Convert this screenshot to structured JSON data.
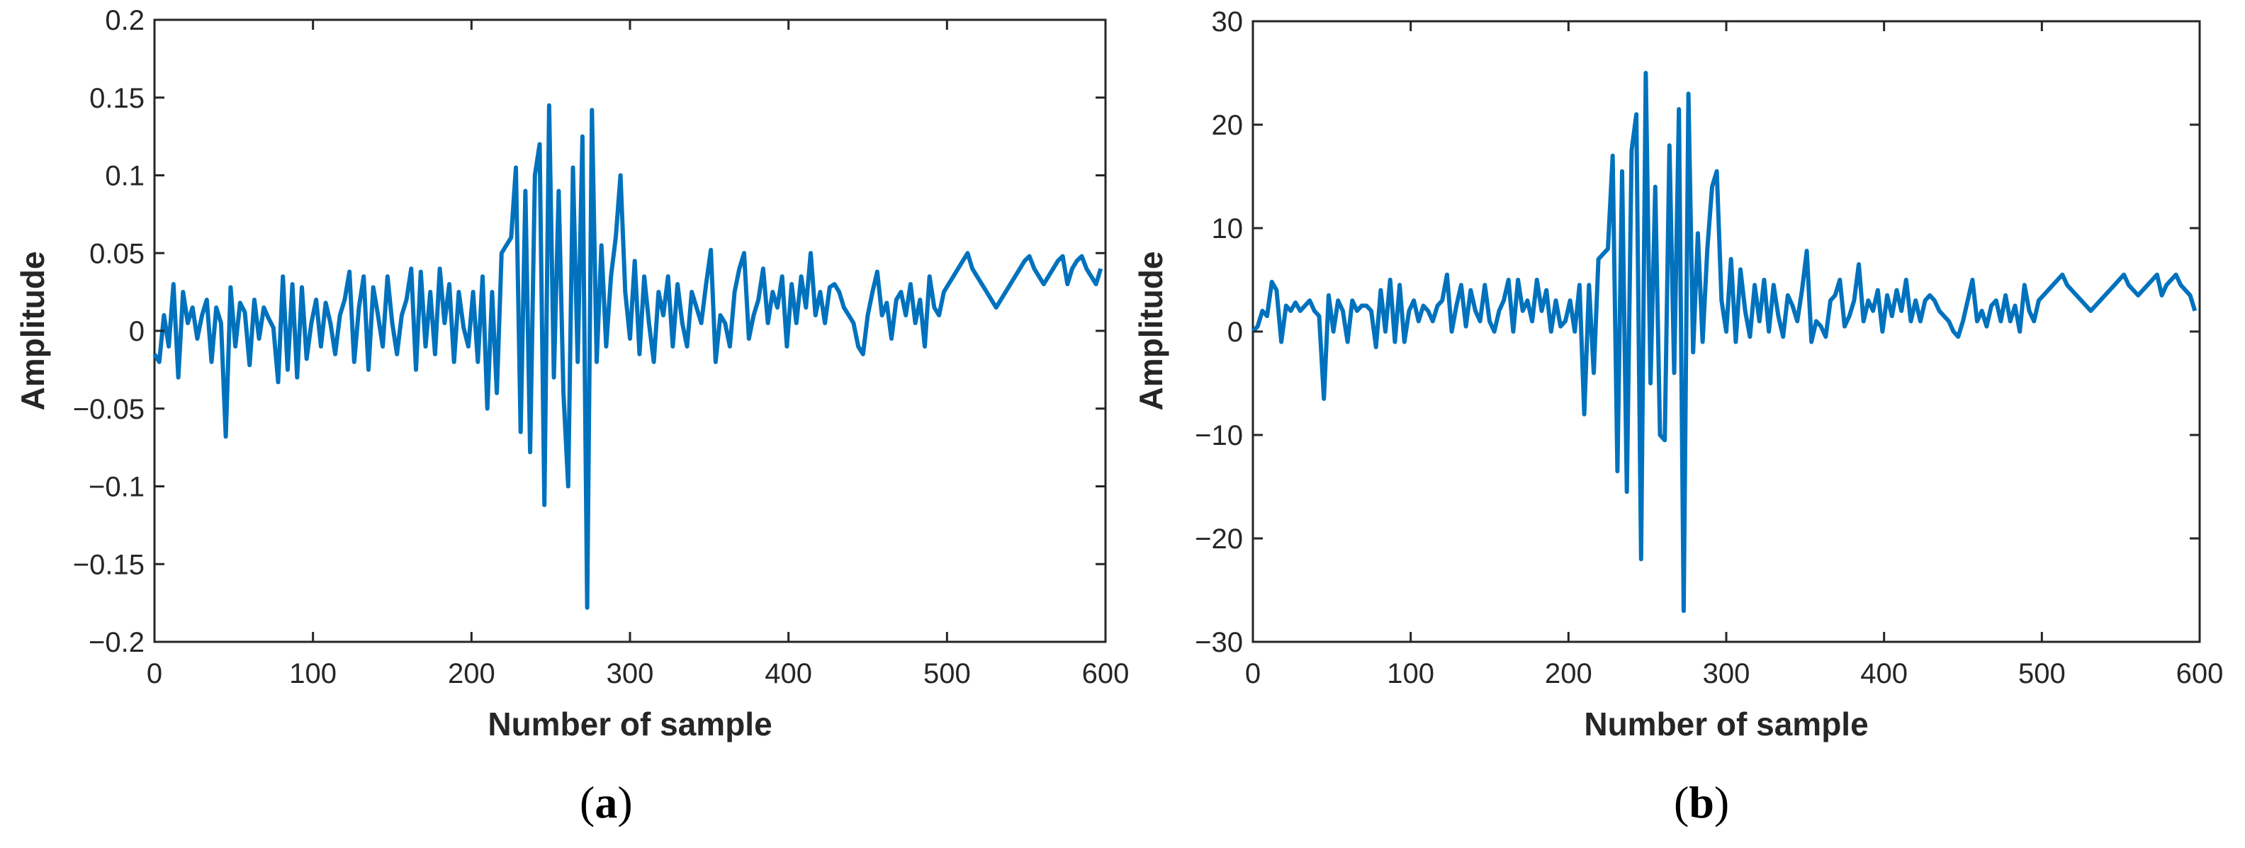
{
  "figure": {
    "panels": [
      {
        "id": "a",
        "caption": "(a)",
        "caption_letter": "a",
        "xlabel": "Number of sample",
        "ylabel": "Amplitude",
        "xticks": [
          "0",
          "100",
          "200",
          "300",
          "400",
          "500",
          "600"
        ],
        "yticks": [
          "0.2",
          "0.15",
          "0.1",
          "0.05",
          "0",
          "−0.05",
          "−0.1",
          "−0.15",
          "−0.2"
        ]
      },
      {
        "id": "b",
        "caption": "(b)",
        "caption_letter": "b",
        "xlabel": "Number of sample",
        "ylabel": "Amplitude",
        "xticks": [
          "0",
          "100",
          "200",
          "300",
          "400",
          "500",
          "600"
        ],
        "yticks": [
          "30",
          "20",
          "10",
          "0",
          "−10",
          "−20",
          "−30"
        ]
      }
    ]
  },
  "colors": {
    "line": "#0072BD",
    "axis": "#262626",
    "background": "#ffffff"
  },
  "chart_data": [
    {
      "type": "line",
      "panel": "a",
      "xlabel": "Number of sample",
      "ylabel": "Amplitude",
      "xlim": [
        0,
        600
      ],
      "ylim": [
        -0.2,
        0.2
      ],
      "xtick_values": [
        0,
        100,
        200,
        300,
        400,
        500,
        600
      ],
      "ytick_values": [
        0.2,
        0.15,
        0.1,
        0.05,
        0,
        -0.05,
        -0.1,
        -0.15,
        -0.2
      ],
      "grid": false,
      "series": [
        {
          "x": [
            0,
            3,
            6,
            9,
            12,
            15,
            18,
            21,
            24,
            27,
            30,
            33,
            36,
            39,
            42,
            45,
            48,
            51,
            54,
            57,
            60,
            63,
            66,
            69,
            72,
            75,
            78,
            81,
            84,
            87,
            90,
            93,
            96,
            99,
            102,
            105,
            108,
            111,
            114,
            117,
            120,
            123,
            126,
            129,
            132,
            135,
            138,
            141,
            144,
            147,
            150,
            153,
            156,
            159,
            162,
            165,
            168,
            171,
            174,
            177,
            180,
            183,
            186,
            189,
            192,
            195,
            198,
            201,
            204,
            207,
            210,
            213,
            216,
            219,
            222,
            225,
            228,
            231,
            234,
            237,
            240,
            243,
            246,
            249,
            252,
            255,
            258,
            261,
            264,
            267,
            270,
            273,
            276,
            279,
            282,
            285,
            288,
            291,
            294,
            297,
            300,
            303,
            306,
            309,
            312,
            315,
            318,
            321,
            324,
            327,
            330,
            333,
            336,
            339,
            342,
            345,
            348,
            351,
            354,
            357,
            360,
            363,
            366,
            369,
            372,
            375,
            378,
            381,
            384,
            387,
            390,
            393,
            396,
            399,
            402,
            405,
            408,
            411,
            414,
            417,
            420,
            423,
            426,
            429,
            432,
            435,
            438,
            441,
            444,
            447,
            450,
            453,
            456,
            459,
            462,
            465,
            468,
            471,
            474,
            477,
            480,
            483,
            486,
            489,
            492,
            495,
            498,
            501,
            504,
            507,
            510,
            513,
            516,
            519,
            522,
            525,
            528,
            531,
            534,
            537,
            540,
            543,
            546,
            549,
            552,
            555,
            558,
            561,
            564,
            567,
            570,
            573,
            576,
            579,
            582,
            585,
            588,
            591,
            594,
            597
          ],
          "y": [
            -0.015,
            -0.02,
            0.01,
            -0.01,
            0.03,
            -0.03,
            0.025,
            0.005,
            0.015,
            -0.005,
            0.01,
            0.02,
            -0.02,
            0.015,
            0.005,
            -0.068,
            0.028,
            -0.01,
            0.018,
            0.012,
            -0.022,
            0.02,
            -0.005,
            0.015,
            0.008,
            0.002,
            -0.033,
            0.035,
            -0.025,
            0.03,
            -0.03,
            0.028,
            -0.018,
            0.005,
            0.02,
            -0.01,
            0.018,
            0.005,
            -0.015,
            0.01,
            0.02,
            0.038,
            -0.02,
            0.015,
            0.035,
            -0.025,
            0.028,
            0.01,
            -0.01,
            0.035,
            0.005,
            -0.015,
            0.01,
            0.02,
            0.04,
            -0.025,
            0.038,
            -0.01,
            0.025,
            -0.015,
            0.04,
            0.005,
            0.03,
            -0.02,
            0.025,
            0.002,
            -0.01,
            0.025,
            -0.02,
            0.035,
            -0.05,
            0.025,
            -0.04,
            0.05,
            0.055,
            0.06,
            0.105,
            -0.065,
            0.09,
            -0.078,
            0.1,
            0.12,
            -0.112,
            0.145,
            -0.03,
            0.09,
            -0.04,
            -0.1,
            0.105,
            -0.02,
            0.125,
            -0.178,
            0.142,
            -0.02,
            0.055,
            -0.01,
            0.035,
            0.06,
            0.1,
            0.025,
            -0.005,
            0.045,
            -0.015,
            0.035,
            0.005,
            -0.02,
            0.025,
            0.01,
            0.035,
            -0.01,
            0.03,
            0.005,
            -0.01,
            0.025,
            0.015,
            0.005,
            0.03,
            0.052,
            -0.02,
            0.01,
            0.005,
            -0.01,
            0.025,
            0.04,
            0.05,
            -0.005,
            0.01,
            0.02,
            0.04,
            0.005,
            0.025,
            0.015,
            0.035,
            -0.01,
            0.03,
            0.005,
            0.035,
            0.015,
            0.05,
            0.01,
            0.025,
            0.005,
            0.028,
            0.03,
            0.025,
            0.015,
            0.01,
            0.005,
            -0.01,
            -0.015,
            0.01,
            0.025,
            0.038,
            0.01,
            0.018,
            -0.005,
            0.02,
            0.025,
            0.01,
            0.03,
            0.005,
            0.02,
            -0.01,
            0.035,
            0.015,
            0.01,
            0.025,
            0.03,
            0.035,
            0.04,
            0.045,
            0.05,
            0.04,
            0.035,
            0.03,
            0.025,
            0.02,
            0.015,
            0.02,
            0.025,
            0.03,
            0.035,
            0.04,
            0.045,
            0.048,
            0.04,
            0.035,
            0.03,
            0.035,
            0.04,
            0.045,
            0.048,
            0.03,
            0.04,
            0.045,
            0.048,
            0.04,
            0.035,
            0.03,
            0.04
          ]
        }
      ]
    },
    {
      "type": "line",
      "panel": "b",
      "xlabel": "Number of sample",
      "ylabel": "Amplitude",
      "xlim": [
        0,
        600
      ],
      "ylim": [
        -30,
        30
      ],
      "xtick_values": [
        0,
        100,
        200,
        300,
        400,
        500,
        600
      ],
      "ytick_values": [
        30,
        20,
        10,
        0,
        -10,
        -20,
        -30
      ],
      "grid": false,
      "series": [
        {
          "x": [
            0,
            3,
            6,
            9,
            12,
            15,
            18,
            21,
            24,
            27,
            30,
            33,
            36,
            39,
            42,
            45,
            48,
            51,
            54,
            57,
            60,
            63,
            66,
            69,
            72,
            75,
            78,
            81,
            84,
            87,
            90,
            93,
            96,
            99,
            102,
            105,
            108,
            111,
            114,
            117,
            120,
            123,
            126,
            129,
            132,
            135,
            138,
            141,
            144,
            147,
            150,
            153,
            156,
            159,
            162,
            165,
            168,
            171,
            174,
            177,
            180,
            183,
            186,
            189,
            192,
            195,
            198,
            201,
            204,
            207,
            210,
            213,
            216,
            219,
            222,
            225,
            228,
            231,
            234,
            237,
            240,
            243,
            246,
            249,
            252,
            255,
            258,
            261,
            264,
            267,
            270,
            273,
            276,
            279,
            282,
            285,
            288,
            291,
            294,
            297,
            300,
            303,
            306,
            309,
            312,
            315,
            318,
            321,
            324,
            327,
            330,
            333,
            336,
            339,
            342,
            345,
            348,
            351,
            354,
            357,
            360,
            363,
            366,
            369,
            372,
            375,
            378,
            381,
            384,
            387,
            390,
            393,
            396,
            399,
            402,
            405,
            408,
            411,
            414,
            417,
            420,
            423,
            426,
            429,
            432,
            435,
            438,
            441,
            444,
            447,
            450,
            453,
            456,
            459,
            462,
            465,
            468,
            471,
            474,
            477,
            480,
            483,
            486,
            489,
            492,
            495,
            498,
            501,
            504,
            507,
            510,
            513,
            516,
            519,
            522,
            525,
            528,
            531,
            534,
            537,
            540,
            543,
            546,
            549,
            552,
            555,
            558,
            561,
            564,
            567,
            570,
            573,
            576,
            579,
            582,
            585,
            588,
            591,
            594,
            597
          ],
          "y": [
            0,
            0.5,
            2,
            1.5,
            4.8,
            4,
            -1,
            2.5,
            2,
            2.8,
            2,
            2.5,
            3,
            2,
            1.5,
            -6.5,
            3.5,
            0,
            3,
            2,
            -1,
            3,
            2,
            2.5,
            2.5,
            2,
            -1.5,
            4,
            0,
            5,
            -1,
            4.5,
            -1,
            2,
            3,
            1,
            2.5,
            2,
            1,
            2.5,
            3,
            5.5,
            0,
            2.5,
            4.5,
            0.5,
            4,
            2,
            1,
            4.5,
            1,
            0,
            2,
            3,
            5,
            0,
            5,
            2,
            3,
            1,
            5,
            2,
            4,
            0,
            3,
            0.5,
            1,
            3,
            0,
            4.5,
            -8,
            4.5,
            -4,
            7,
            7.5,
            8,
            17,
            -13.5,
            15.5,
            -15.5,
            17.5,
            21,
            -22,
            25,
            -5,
            14,
            -10,
            -10.5,
            18,
            -4,
            21.5,
            -27,
            23,
            -2,
            9.5,
            -1,
            8,
            14,
            15.5,
            3,
            0,
            7,
            -1,
            6,
            2,
            -0.5,
            4.5,
            1,
            5,
            0,
            4.5,
            1.5,
            -0.5,
            3.5,
            2.5,
            1,
            4,
            7.8,
            -1,
            1,
            0.5,
            -0.5,
            3,
            3.5,
            5,
            0.5,
            1.5,
            3,
            6.5,
            1,
            3,
            2,
            4,
            0,
            3.5,
            1.5,
            4,
            2,
            5,
            1,
            3,
            1,
            3,
            3.5,
            3,
            2,
            1.5,
            1,
            0,
            -0.5,
            1,
            3,
            5,
            1,
            2,
            0.5,
            2.5,
            3,
            1,
            3.5,
            1,
            2.5,
            0,
            4.5,
            2,
            1,
            3,
            3.5,
            4,
            4.5,
            5,
            5.5,
            4.5,
            4,
            3.5,
            3,
            2.5,
            2,
            2.5,
            3,
            3.5,
            4,
            4.5,
            5,
            5.5,
            4.5,
            4,
            3.5,
            4,
            4.5,
            5,
            5.5,
            3.5,
            4.5,
            5,
            5.5,
            4.5,
            4,
            3.5,
            2
          ]
        }
      ]
    }
  ]
}
